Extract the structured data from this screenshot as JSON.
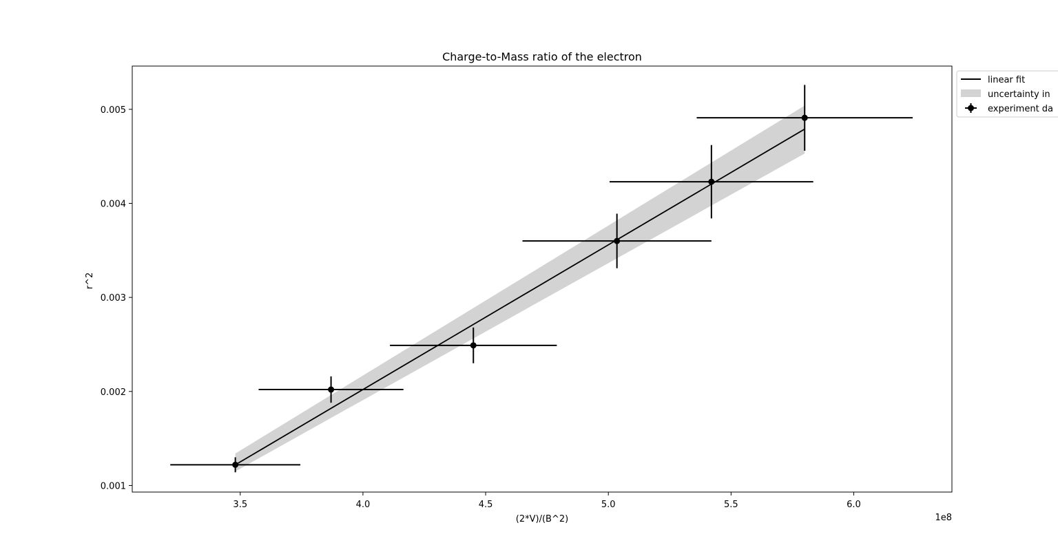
{
  "chart_data": {
    "type": "scatter",
    "title": "Charge-to-Mass ratio of the electron",
    "xlabel": "(2*V)/(B^2)",
    "ylabel": "r^2",
    "x_offset_text": "1e8",
    "xlim": [
      3.06,
      6.4
    ],
    "ylim": [
      0.00093,
      0.00546
    ],
    "x_ticks": [
      3.5,
      4.0,
      4.5,
      5.0,
      5.5,
      6.0
    ],
    "x_tick_labels": [
      "3.5",
      "4.0",
      "4.5",
      "5.0",
      "5.5",
      "6.0"
    ],
    "y_ticks": [
      0.001,
      0.002,
      0.003,
      0.004,
      0.005
    ],
    "y_tick_labels": [
      "0.001",
      "0.002",
      "0.003",
      "0.004",
      "0.005"
    ],
    "grid": false,
    "legend": {
      "placement": "outside upper right",
      "entries": [
        "linear fit",
        "uncertainty in",
        "experiment da"
      ]
    },
    "series": [
      {
        "name": "experiment da",
        "kind": "errorbar",
        "color": "#000000",
        "points": [
          {
            "x": 3.48,
            "y": 0.00122,
            "xerr": 0.265,
            "yerr": 8e-05
          },
          {
            "x": 3.87,
            "y": 0.00202,
            "xerr": 0.295,
            "yerr": 0.00014
          },
          {
            "x": 4.45,
            "y": 0.00249,
            "xerr": 0.34,
            "yerr": 0.00019
          },
          {
            "x": 5.035,
            "y": 0.0036,
            "xerr": 0.385,
            "yerr": 0.00029
          },
          {
            "x": 5.42,
            "y": 0.00423,
            "xerr": 0.415,
            "yerr": 0.00039
          },
          {
            "x": 5.8,
            "y": 0.00491,
            "xerr": 0.44,
            "yerr": 0.00035
          }
        ]
      },
      {
        "name": "linear fit",
        "kind": "line",
        "color": "#000000",
        "x": [
          3.48,
          5.8
        ],
        "y": [
          0.00122,
          0.00479
        ]
      },
      {
        "name": "uncertainty in",
        "kind": "band",
        "color": "#d3d3d3",
        "x": [
          3.48,
          5.8
        ],
        "y_low": [
          0.00115,
          0.00453
        ],
        "y_high": [
          0.00134,
          0.00504
        ]
      }
    ]
  }
}
